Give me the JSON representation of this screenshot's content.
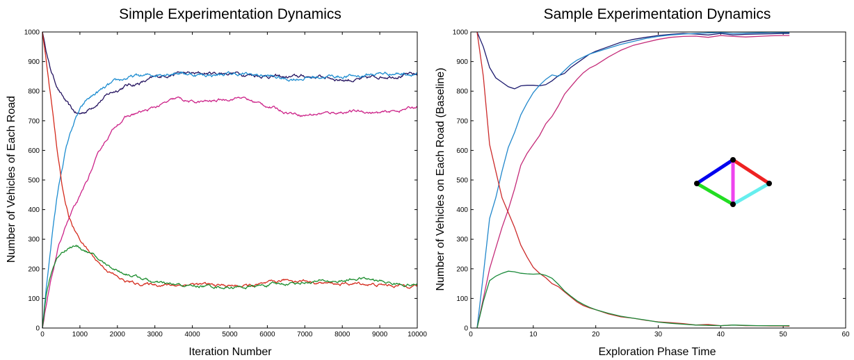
{
  "chart_data": [
    {
      "type": "line",
      "title": "Simple Experimentation Dynamics",
      "xlabel": "Iteration Number",
      "ylabel": "Number of Vehicles of Each Road",
      "xlim": [
        0,
        10000
      ],
      "ylim": [
        0,
        1000
      ],
      "xticks": [
        0,
        1000,
        2000,
        3000,
        4000,
        5000,
        6000,
        7000,
        8000,
        9000,
        10000
      ],
      "yticks": [
        0,
        100,
        200,
        300,
        400,
        500,
        600,
        700,
        800,
        900,
        1000
      ],
      "grid": false,
      "legend": "none",
      "series": [
        {
          "color": "#24135f",
          "noise": 5,
          "x": [
            0,
            100,
            200,
            300,
            400,
            500,
            600,
            700,
            800,
            900,
            1000,
            1200,
            1400,
            1600,
            1800,
            2000,
            2200,
            2500,
            2800,
            3000,
            3300,
            3600,
            4000,
            4500,
            5000,
            5300,
            5600,
            6000,
            6500,
            7000,
            7500,
            8000,
            8500,
            9000,
            9500,
            10000
          ],
          "y": [
            1000,
            940,
            880,
            845,
            815,
            790,
            770,
            750,
            735,
            725,
            722,
            735,
            755,
            775,
            792,
            805,
            818,
            825,
            835,
            845,
            855,
            862,
            858,
            860,
            862,
            860,
            856,
            852,
            846,
            850,
            848,
            840,
            838,
            850,
            855,
            855
          ]
        },
        {
          "color": "#1c8cd0",
          "noise": 5,
          "x": [
            0,
            100,
            200,
            300,
            400,
            500,
            600,
            700,
            800,
            900,
            1000,
            1200,
            1400,
            1600,
            1800,
            2000,
            2200,
            2500,
            2800,
            3000,
            3300,
            3600,
            4000,
            4500,
            5000,
            5300,
            5600,
            6000,
            6500,
            7000,
            7500,
            8000,
            8500,
            9000,
            9500,
            10000
          ],
          "y": [
            0,
            130,
            250,
            360,
            450,
            525,
            590,
            640,
            680,
            710,
            735,
            770,
            790,
            805,
            820,
            832,
            842,
            850,
            852,
            855,
            862,
            865,
            857,
            855,
            858,
            857,
            855,
            852,
            840,
            845,
            850,
            850,
            852,
            860,
            860,
            860
          ]
        },
        {
          "color": "#cc2288",
          "noise": 4,
          "x": [
            0,
            200,
            400,
            600,
            800,
            1000,
            1200,
            1400,
            1600,
            1800,
            2000,
            2200,
            2500,
            2800,
            3000,
            3300,
            3600,
            3800,
            4000,
            4500,
            5000,
            5300,
            5500,
            6000,
            6500,
            7000,
            7500,
            8000,
            8500,
            9000,
            9500,
            10000
          ],
          "y": [
            0,
            140,
            260,
            340,
            395,
            440,
            500,
            560,
            615,
            655,
            690,
            710,
            725,
            735,
            745,
            760,
            775,
            768,
            762,
            765,
            775,
            780,
            770,
            750,
            730,
            720,
            725,
            730,
            732,
            725,
            735,
            748
          ]
        },
        {
          "color": "#d42a1c",
          "noise": 4,
          "x": [
            0,
            100,
            200,
            300,
            400,
            500,
            600,
            700,
            800,
            900,
            1000,
            1200,
            1400,
            1600,
            1800,
            2000,
            2200,
            2500,
            2800,
            3000,
            3500,
            4000,
            4500,
            5000,
            5500,
            6000,
            6500,
            7000,
            7500,
            8000,
            8500,
            9000,
            9500,
            10000
          ],
          "y": [
            1000,
            900,
            800,
            700,
            590,
            500,
            430,
            380,
            345,
            320,
            300,
            265,
            235,
            210,
            190,
            172,
            158,
            150,
            148,
            148,
            145,
            148,
            145,
            143,
            142,
            148,
            162,
            160,
            152,
            148,
            150,
            145,
            143,
            145
          ]
        },
        {
          "color": "#1a8c2c",
          "noise": 4,
          "x": [
            0,
            100,
            200,
            300,
            400,
            500,
            600,
            700,
            800,
            900,
            1000,
            1200,
            1400,
            1600,
            1800,
            2000,
            2200,
            2500,
            2800,
            3000,
            3500,
            4000,
            4500,
            5000,
            5500,
            6000,
            6500,
            7000,
            7500,
            8000,
            8500,
            9000,
            9500,
            10000
          ],
          "y": [
            0,
            110,
            170,
            210,
            238,
            255,
            265,
            272,
            277,
            276,
            272,
            258,
            240,
            222,
            208,
            196,
            185,
            175,
            162,
            152,
            145,
            142,
            141,
            138,
            138,
            145,
            150,
            155,
            158,
            158,
            168,
            158,
            148,
            145
          ]
        }
      ]
    },
    {
      "type": "line",
      "title": "Sample Experimentation Dynamics",
      "xlabel": "Exploration Phase Time",
      "ylabel": "Number of Vehicles on Each Road (Baseline)",
      "xlim": [
        0,
        60
      ],
      "ylim": [
        0,
        1000
      ],
      "xticks": [
        0,
        10,
        20,
        30,
        40,
        50,
        60
      ],
      "yticks": [
        0,
        100,
        200,
        300,
        400,
        500,
        600,
        700,
        800,
        900,
        1000
      ],
      "grid": false,
      "legend": "none",
      "series": [
        {
          "color": "#1c1a6e",
          "noise": 0,
          "x": [
            1,
            2,
            3,
            4,
            5,
            6,
            7,
            8,
            9,
            10,
            11,
            12,
            13,
            14,
            15,
            16,
            17,
            18,
            19,
            20,
            22,
            24,
            26,
            28,
            30,
            32,
            34,
            36,
            38,
            40,
            42,
            44,
            46,
            48,
            50,
            51
          ],
          "y": [
            1000,
            950,
            880,
            845,
            830,
            815,
            808,
            818,
            820,
            820,
            818,
            822,
            835,
            852,
            860,
            880,
            895,
            910,
            925,
            935,
            950,
            965,
            975,
            982,
            988,
            992,
            995,
            993,
            990,
            995,
            990,
            992,
            993,
            994,
            995,
            995
          ]
        },
        {
          "color": "#2288cc",
          "noise": 0,
          "x": [
            1,
            2,
            3,
            4,
            5,
            6,
            7,
            8,
            9,
            10,
            11,
            12,
            13,
            14,
            15,
            16,
            17,
            18,
            19,
            20,
            22,
            24,
            26,
            28,
            30,
            32,
            34,
            36,
            38,
            40,
            42,
            44,
            46,
            48,
            50,
            51
          ],
          "y": [
            0,
            180,
            370,
            440,
            530,
            610,
            660,
            720,
            760,
            795,
            820,
            840,
            855,
            850,
            870,
            890,
            905,
            915,
            925,
            932,
            945,
            958,
            968,
            978,
            985,
            990,
            993,
            995,
            997,
            998,
            995,
            996,
            997,
            998,
            998,
            998
          ]
        },
        {
          "color": "#c42a78",
          "noise": 0,
          "x": [
            1,
            2,
            3,
            4,
            5,
            6,
            7,
            8,
            9,
            10,
            11,
            12,
            13,
            14,
            15,
            16,
            17,
            18,
            19,
            20,
            22,
            24,
            26,
            28,
            30,
            32,
            34,
            36,
            38,
            40,
            42,
            44,
            46,
            48,
            50,
            51
          ],
          "y": [
            0,
            100,
            200,
            270,
            340,
            400,
            470,
            550,
            590,
            620,
            650,
            690,
            715,
            750,
            790,
            815,
            840,
            862,
            878,
            888,
            915,
            938,
            955,
            965,
            975,
            982,
            985,
            986,
            982,
            988,
            985,
            983,
            985,
            987,
            988,
            988
          ]
        },
        {
          "color": "#cc2a2a",
          "noise": 0,
          "x": [
            1,
            2,
            3,
            4,
            5,
            6,
            7,
            8,
            9,
            10,
            11,
            12,
            13,
            14,
            15,
            16,
            17,
            18,
            19,
            20,
            22,
            24,
            26,
            28,
            30,
            32,
            34,
            36,
            38,
            40,
            42,
            44,
            46,
            48,
            50,
            51
          ],
          "y": [
            1000,
            850,
            620,
            530,
            440,
            390,
            340,
            280,
            240,
            205,
            185,
            170,
            150,
            140,
            122,
            105,
            88,
            76,
            68,
            62,
            48,
            38,
            33,
            26,
            21,
            18,
            15,
            10,
            12,
            8,
            10,
            8,
            8,
            7,
            7,
            6
          ]
        },
        {
          "color": "#1a8a3a",
          "noise": 0,
          "x": [
            1,
            2,
            3,
            4,
            5,
            6,
            7,
            8,
            9,
            10,
            11,
            12,
            13,
            14,
            15,
            16,
            17,
            18,
            19,
            20,
            22,
            24,
            26,
            28,
            30,
            32,
            34,
            36,
            38,
            40,
            42,
            44,
            46,
            48,
            50,
            51
          ],
          "y": [
            0,
            90,
            160,
            175,
            185,
            192,
            190,
            185,
            183,
            182,
            183,
            178,
            168,
            148,
            125,
            108,
            92,
            80,
            70,
            62,
            50,
            40,
            33,
            27,
            20,
            16,
            13,
            10,
            9,
            8,
            10,
            9,
            8,
            8,
            8,
            8
          ]
        }
      ],
      "inset_network": {
        "edges": [
          {
            "from": 0,
            "to": 1,
            "color": "#0000ee"
          },
          {
            "from": 1,
            "to": 2,
            "color": "#ee2222"
          },
          {
            "from": 0,
            "to": 3,
            "color": "#22dd22"
          },
          {
            "from": 3,
            "to": 2,
            "color": "#66eeee"
          },
          {
            "from": 1,
            "to": 3,
            "color": "#ee44ee"
          }
        ]
      }
    }
  ]
}
